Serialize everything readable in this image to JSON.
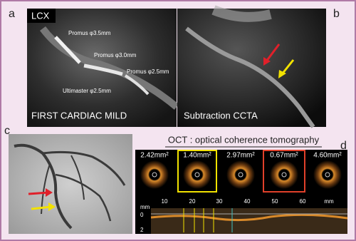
{
  "panels": {
    "a": {
      "letter": "a",
      "vessel": "LCX",
      "labels": [
        "Promus φ3.5mm",
        "Promus φ3.0mm",
        "Promus φ2.5mm",
        "Ultimaster φ2.5mm"
      ],
      "caption": "FIRST CARDIAC MILD"
    },
    "b": {
      "letter": "b",
      "caption": "Subtraction CCTA"
    },
    "c": {
      "letter": "c"
    },
    "d": {
      "letter": "d",
      "title": "OCT : optical coherence tomography",
      "areas": [
        "2.42mm²",
        "1.40mm²",
        "2.97mm²",
        "0.67mm²",
        "4.60mm²"
      ],
      "scale": [
        "10",
        "20",
        "30",
        "40",
        "50",
        "60",
        "mm"
      ],
      "depth": [
        "mm",
        "0",
        "2"
      ]
    }
  }
}
